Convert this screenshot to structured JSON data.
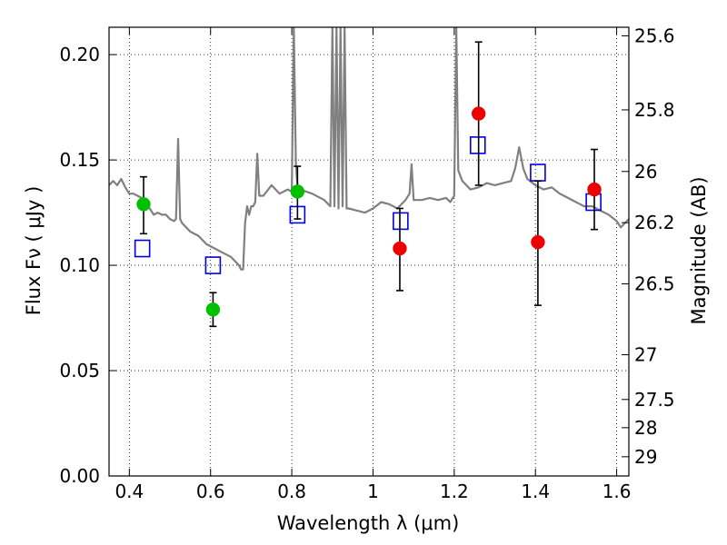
{
  "chart_data": {
    "type": "scatter",
    "xlabel": "Wavelength  λ (μm)",
    "ylabel": "Flux  Fν  ( μJy )",
    "y2label": "Magnitude (AB)",
    "xlim": [
      0.35,
      1.63
    ],
    "ylim": [
      0.0,
      0.213
    ],
    "grid": true,
    "x_ticks": [
      0.4,
      0.6,
      0.8,
      1.0,
      1.2,
      1.4,
      1.6
    ],
    "x_tick_labels": [
      "0.4",
      "0.6",
      "0.8",
      "1",
      "1.2",
      "1.4",
      "1.6"
    ],
    "y_ticks": [
      0.0,
      0.05,
      0.1,
      0.15,
      0.2
    ],
    "y_tick_labels": [
      "0.00",
      "0.05",
      "0.10",
      "0.15",
      "0.20"
    ],
    "mag_ticks": [
      25.6,
      25.8,
      26,
      26.2,
      26.5,
      27,
      27.5,
      28,
      29
    ],
    "mag_tick_labels": [
      "25.6",
      "25.8",
      "26",
      "26.2",
      "26.5",
      "27",
      "27.5",
      "28",
      "29"
    ],
    "colors": {
      "model": "#808080",
      "green": "#00c000",
      "red": "#ee0000",
      "open_square": "#0000dd",
      "errorbar": "#000000"
    },
    "series": [
      {
        "style": "filled-circle-green",
        "points": [
          {
            "x": 0.435,
            "y": 0.129,
            "ylo": 0.115,
            "yhi": 0.142
          },
          {
            "x": 0.606,
            "y": 0.079,
            "ylo": 0.071,
            "yhi": 0.087
          },
          {
            "x": 0.814,
            "y": 0.135,
            "ylo": 0.122,
            "yhi": 0.147
          }
        ]
      },
      {
        "style": "filled-circle-red",
        "points": [
          {
            "x": 1.066,
            "y": 0.108,
            "ylo": 0.088,
            "yhi": 0.127
          },
          {
            "x": 1.26,
            "y": 0.172,
            "ylo": 0.138,
            "yhi": 0.206
          },
          {
            "x": 1.406,
            "y": 0.111,
            "ylo": 0.081,
            "yhi": 0.14
          },
          {
            "x": 1.545,
            "y": 0.136,
            "ylo": 0.117,
            "yhi": 0.155
          }
        ]
      },
      {
        "style": "open-square-blue",
        "points": [
          {
            "x": 0.432,
            "y": 0.108
          },
          {
            "x": 0.606,
            "y": 0.1
          },
          {
            "x": 0.814,
            "y": 0.124
          },
          {
            "x": 1.068,
            "y": 0.121
          },
          {
            "x": 1.258,
            "y": 0.157
          },
          {
            "x": 1.406,
            "y": 0.144
          },
          {
            "x": 1.543,
            "y": 0.13
          }
        ]
      },
      {
        "style": "model-spectrum-gray",
        "x": [
          0.35,
          0.36,
          0.37,
          0.38,
          0.39,
          0.4,
          0.41,
          0.42,
          0.43,
          0.44,
          0.45,
          0.46,
          0.47,
          0.48,
          0.49,
          0.5,
          0.51,
          0.515,
          0.52,
          0.525,
          0.53,
          0.55,
          0.57,
          0.59,
          0.61,
          0.63,
          0.65,
          0.67,
          0.675,
          0.68,
          0.685,
          0.69,
          0.695,
          0.7,
          0.705,
          0.71,
          0.715,
          0.72,
          0.73,
          0.75,
          0.77,
          0.79,
          0.8,
          0.805,
          0.81,
          0.815,
          0.82,
          0.85,
          0.88,
          0.895,
          0.9,
          0.905,
          0.91,
          0.915,
          0.92,
          0.925,
          0.93,
          0.935,
          0.94,
          0.96,
          0.98,
          1.0,
          1.02,
          1.04,
          1.06,
          1.08,
          1.09,
          1.095,
          1.1,
          1.12,
          1.14,
          1.16,
          1.18,
          1.19,
          1.2,
          1.205,
          1.21,
          1.22,
          1.24,
          1.26,
          1.28,
          1.3,
          1.32,
          1.34,
          1.35,
          1.36,
          1.37,
          1.38,
          1.4,
          1.42,
          1.44,
          1.46,
          1.48,
          1.5,
          1.52,
          1.54,
          1.56,
          1.58,
          1.6,
          1.61,
          1.62,
          1.63
        ],
        "y": [
          0.138,
          0.14,
          0.138,
          0.141,
          0.137,
          0.134,
          0.134,
          0.133,
          0.132,
          0.13,
          0.127,
          0.124,
          0.125,
          0.124,
          0.124,
          0.122,
          0.121,
          0.122,
          0.16,
          0.122,
          0.12,
          0.116,
          0.114,
          0.11,
          0.108,
          0.106,
          0.104,
          0.1,
          0.098,
          0.098,
          0.12,
          0.128,
          0.124,
          0.128,
          0.128,
          0.13,
          0.153,
          0.133,
          0.133,
          0.138,
          0.134,
          0.136,
          0.135,
          0.213,
          0.148,
          0.135,
          0.136,
          0.134,
          0.131,
          0.128,
          0.213,
          0.128,
          0.213,
          0.127,
          0.213,
          0.128,
          0.213,
          0.127,
          0.127,
          0.126,
          0.125,
          0.127,
          0.13,
          0.129,
          0.127,
          0.131,
          0.134,
          0.148,
          0.131,
          0.131,
          0.132,
          0.131,
          0.132,
          0.13,
          0.133,
          0.213,
          0.145,
          0.14,
          0.136,
          0.137,
          0.139,
          0.138,
          0.139,
          0.14,
          0.146,
          0.156,
          0.146,
          0.141,
          0.138,
          0.136,
          0.137,
          0.134,
          0.132,
          0.13,
          0.128,
          0.128,
          0.126,
          0.124,
          0.121,
          0.118,
          0.12,
          0.122
        ]
      }
    ]
  }
}
